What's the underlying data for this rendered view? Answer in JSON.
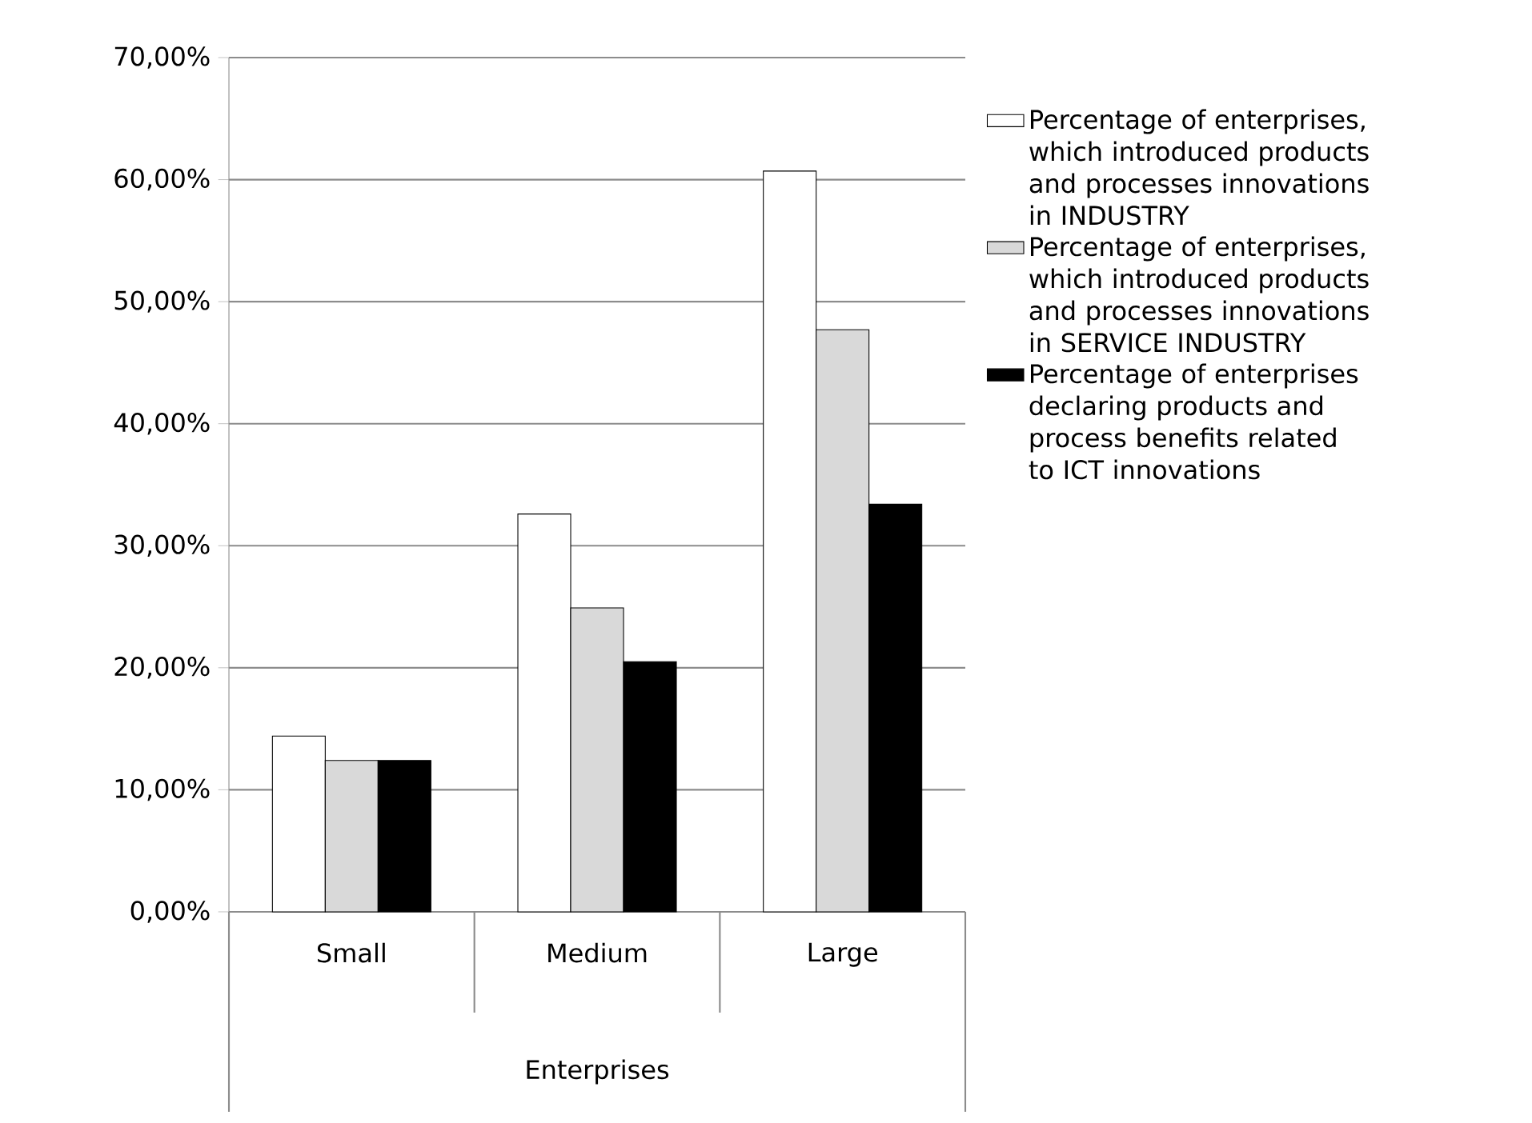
{
  "chart_data": {
    "type": "bar",
    "xlabel": "Enterprises",
    "categories": [
      "Small",
      "Medium",
      "Large"
    ],
    "series": [
      {
        "name": "Percentage of enterprises, which introduced products and processes innovations in INDUSTRY",
        "color": "#ffffff",
        "values": [
          14.4,
          32.6,
          60.7
        ]
      },
      {
        "name": "Percentage of enterprises, which introduced products and processes innovations in SERVICE INDUSTRY",
        "color": "#d9d9d9",
        "values": [
          12.4,
          24.9,
          47.7
        ]
      },
      {
        "name": "Percentage of enterprises declaring products and process benefits related to ICT innovations",
        "color": "#000000",
        "values": [
          12.4,
          20.5,
          33.4
        ]
      }
    ],
    "ylim": [
      0,
      70
    ],
    "yticks": [
      {
        "value": 0,
        "label": "0,00%"
      },
      {
        "value": 10,
        "label": "10,00%"
      },
      {
        "value": 20,
        "label": "20,00%"
      },
      {
        "value": 30,
        "label": "30,00%"
      },
      {
        "value": 40,
        "label": "40,00%"
      },
      {
        "value": 50,
        "label": "50,00%"
      },
      {
        "value": 60,
        "label": "60,00%"
      },
      {
        "value": 70,
        "label": "70,00%"
      }
    ],
    "grid": "y",
    "legend": "right"
  }
}
